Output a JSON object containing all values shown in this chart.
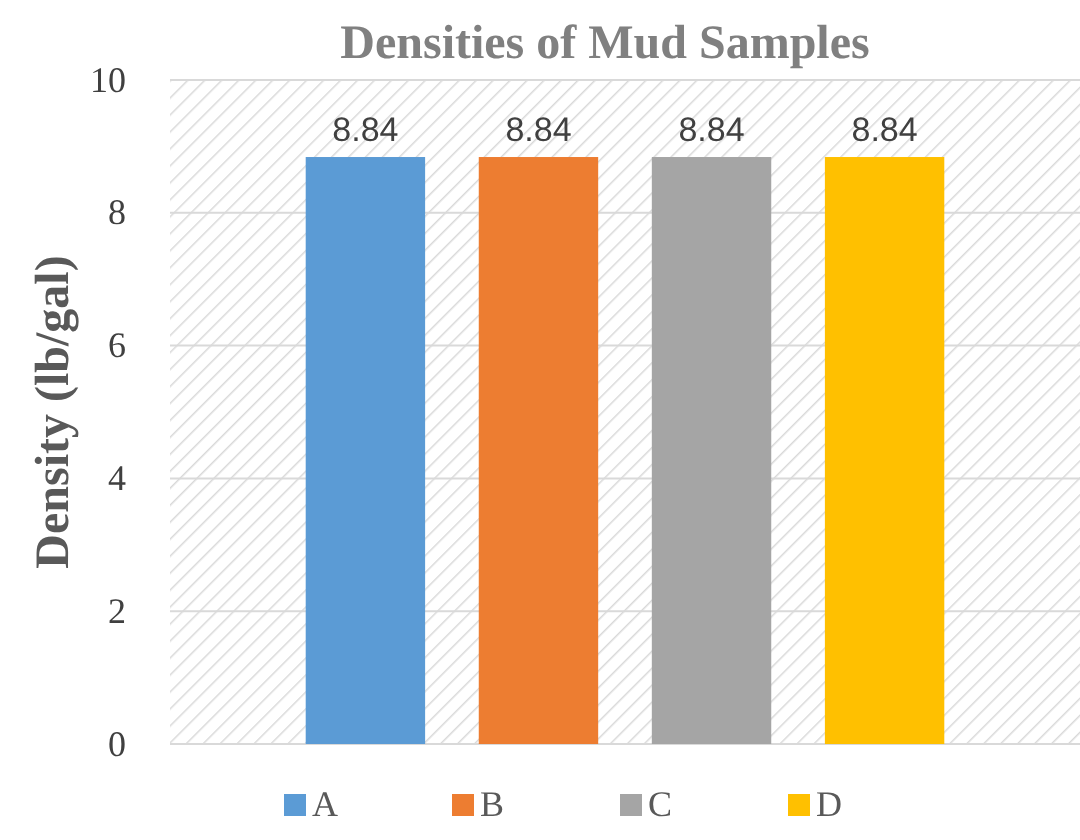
{
  "chart_data": {
    "type": "bar",
    "title": "Densities of Mud Samples",
    "ylabel": "Density (lb/gal)",
    "categories": [
      null
    ],
    "series": [
      {
        "name": "A",
        "color": "#5b9bd5",
        "values": [
          8.84
        ]
      },
      {
        "name": "B",
        "color": "#ed7d31",
        "values": [
          8.84
        ]
      },
      {
        "name": "C",
        "color": "#a5a5a5",
        "values": [
          8.84
        ]
      },
      {
        "name": "D",
        "color": "#ffc000",
        "values": [
          8.84
        ]
      }
    ],
    "ylim": [
      0,
      10
    ],
    "yticks": [
      0,
      2,
      4,
      6,
      8,
      10
    ],
    "grid": "y",
    "legend": "bottom",
    "data_labels": true
  }
}
